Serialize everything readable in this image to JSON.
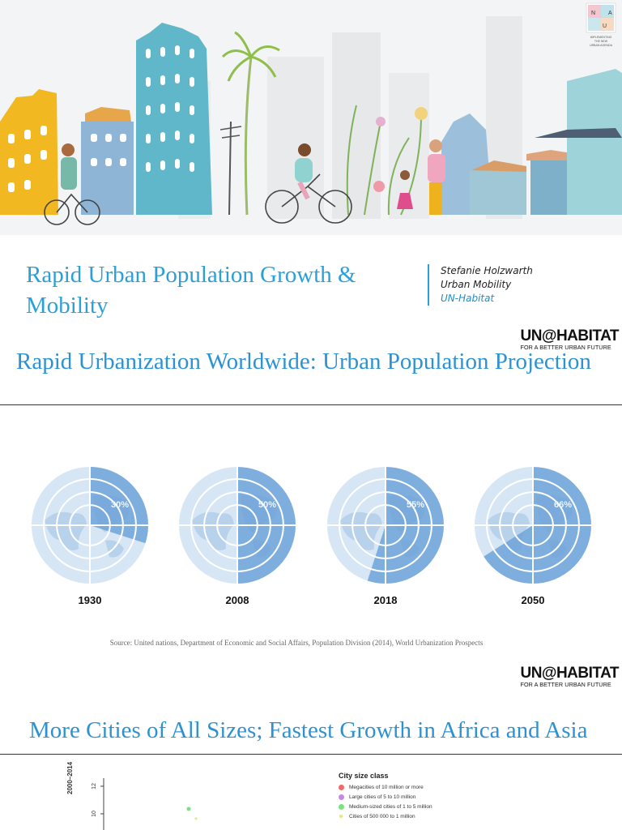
{
  "slide1": {
    "title": "Rapid Urban Population Growth & Mobility",
    "author_name": "Stefanie Holzwarth",
    "author_role": "Urban Mobility",
    "author_org": "UN-Habitat",
    "nua_logo": {
      "letters": [
        "N",
        "U",
        "A"
      ],
      "lines": [
        "IMPLEMENTING",
        "THE NEW",
        "URBAN AGENDA"
      ]
    }
  },
  "logo": {
    "main": "UN@HABITAT",
    "tagline": "FOR A BETTER URBAN FUTURE"
  },
  "slide2": {
    "title": "Rapid Urbanization Worldwide: Urban Population Projection",
    "source": "Source: United nations, Department of Economic and Social Affairs, Population Division (2014), World Urbanization Prospects"
  },
  "chart_data": {
    "type": "pie",
    "categories": [
      "1930",
      "2008",
      "2018",
      "2050"
    ],
    "series": [
      {
        "values": [
          30,
          50,
          55,
          66
        ]
      }
    ],
    "value_labels": [
      "30%",
      "50%",
      "55%",
      "66%"
    ],
    "colors": {
      "urban": "#6fa3d8",
      "rural": "#d6e6f5",
      "grid": "#ffffff"
    }
  },
  "slide3": {
    "title": "More Cities of All Sizes; Fastest Growth in Africa and Asia",
    "yaxis_label": "2000–2014",
    "ytick_labels": [
      "12",
      "10"
    ],
    "legend": {
      "title": "City size class",
      "items": [
        {
          "label": "Megacities of 10 million or more",
          "color": "#f06a6a"
        },
        {
          "label": "Large cities of 5 to 10 million",
          "color": "#c38be0"
        },
        {
          "label": "Medium-sized cities of 1 to 5 million",
          "color": "#7ee07e"
        },
        {
          "label": "Cities of 500 000 to 1 million",
          "color": "#e6e67a"
        }
      ]
    }
  }
}
